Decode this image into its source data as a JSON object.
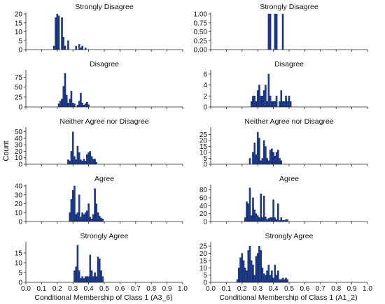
{
  "figure": {
    "ylabel": "Count",
    "bar_color": "#1f3d8f",
    "bar_edge": "#0d1f55",
    "x_ticks": [
      "0.0",
      "0.1",
      "0.2",
      "0.3",
      "0.4",
      "0.5",
      "0.6",
      "0.7",
      "0.8",
      "0.9",
      "1.0"
    ]
  },
  "chart_data": [
    {
      "type": "bar",
      "title": "Strongly Disagree",
      "xlabel": "",
      "ylabel": "",
      "xlim": [
        0,
        1
      ],
      "ylim": [
        0,
        20
      ],
      "y_ticks": [
        "0",
        "5",
        "10",
        "15",
        "20"
      ],
      "x": [
        0.18,
        0.19,
        0.2,
        0.21,
        0.23,
        0.24,
        0.25,
        0.27,
        0.32,
        0.34,
        0.35,
        0.36,
        0.38
      ],
      "values": [
        2,
        18,
        21,
        19,
        18,
        7,
        2,
        5,
        2,
        3,
        1,
        2,
        1
      ]
    },
    {
      "type": "bar",
      "title": "Strongly Disagree",
      "xlabel": "",
      "ylabel": "",
      "xlim": [
        0,
        1
      ],
      "ylim": [
        0,
        1.0
      ],
      "y_ticks": [
        "0.00",
        "0.25",
        "0.50",
        "0.75",
        "1.00"
      ],
      "x": [
        0.37,
        0.38,
        0.41,
        0.42,
        0.46
      ],
      "values": [
        1,
        1,
        1,
        1,
        1
      ]
    },
    {
      "type": "bar",
      "title": "Disagree",
      "xlabel": "",
      "ylabel": "",
      "xlim": [
        0,
        1
      ],
      "ylim": [
        0,
        90
      ],
      "y_ticks": [
        "0",
        "25",
        "50",
        "75"
      ],
      "x": [
        0.21,
        0.22,
        0.23,
        0.24,
        0.25,
        0.26,
        0.27,
        0.28,
        0.29,
        0.3,
        0.31,
        0.33,
        0.34,
        0.35,
        0.36,
        0.37,
        0.38,
        0.39,
        0.4
      ],
      "values": [
        8,
        15,
        20,
        52,
        85,
        30,
        10,
        20,
        40,
        10,
        8,
        5,
        15,
        35,
        10,
        5,
        8,
        12,
        6
      ]
    },
    {
      "type": "bar",
      "title": "Disagree",
      "xlabel": "",
      "ylabel": "",
      "xlim": [
        0,
        1
      ],
      "ylim": [
        0,
        6.5
      ],
      "y_ticks": [
        "0",
        "2",
        "4",
        "6"
      ],
      "x": [
        0.26,
        0.27,
        0.28,
        0.29,
        0.3,
        0.31,
        0.32,
        0.33,
        0.34,
        0.35,
        0.36,
        0.37,
        0.38,
        0.39,
        0.4,
        0.41,
        0.42,
        0.44,
        0.45,
        0.46,
        0.47,
        0.48,
        0.49,
        0.5,
        0.51
      ],
      "values": [
        1,
        2,
        2,
        1,
        3,
        4,
        2,
        2,
        3,
        4,
        1,
        6,
        2,
        1,
        1,
        1,
        2,
        1,
        3,
        1,
        1,
        2,
        1,
        2,
        1
      ]
    },
    {
      "type": "bar",
      "title": "Neither Agree nor Disagree",
      "xlabel": "",
      "ylabel": "Count",
      "xlim": [
        0,
        1
      ],
      "ylim": [
        0,
        55
      ],
      "y_ticks": [
        "0",
        "10",
        "20",
        "30",
        "40",
        "50"
      ],
      "x": [
        0.27,
        0.28,
        0.29,
        0.3,
        0.31,
        0.32,
        0.33,
        0.34,
        0.35,
        0.36,
        0.37,
        0.38,
        0.39,
        0.4,
        0.41,
        0.42,
        0.43,
        0.44,
        0.45
      ],
      "values": [
        7,
        5,
        20,
        50,
        12,
        7,
        28,
        18,
        7,
        5,
        8,
        5,
        15,
        18,
        20,
        12,
        8,
        8,
        3
      ]
    },
    {
      "type": "bar",
      "title": "Neither Agree nor Disagree",
      "xlabel": "",
      "ylabel": "",
      "xlim": [
        0,
        1
      ],
      "ylim": [
        0,
        30
      ],
      "y_ticks": [
        "0",
        "5",
        "10",
        "15",
        "20",
        "25"
      ],
      "x": [
        0.25,
        0.27,
        0.28,
        0.29,
        0.3,
        0.31,
        0.32,
        0.33,
        0.34,
        0.35,
        0.36,
        0.37,
        0.38,
        0.39,
        0.4,
        0.41,
        0.42,
        0.43,
        0.44,
        0.45
      ],
      "values": [
        5,
        10,
        18,
        8,
        27,
        22,
        3,
        5,
        20,
        15,
        5,
        3,
        12,
        13,
        10,
        7,
        10,
        12,
        5,
        3
      ]
    },
    {
      "type": "bar",
      "title": "Agree",
      "xlabel": "",
      "ylabel": "",
      "xlim": [
        0,
        1
      ],
      "ylim": [
        0,
        40
      ],
      "y_ticks": [
        "0",
        "10",
        "20",
        "30",
        "40"
      ],
      "x": [
        0.28,
        0.29,
        0.3,
        0.31,
        0.32,
        0.33,
        0.34,
        0.35,
        0.36,
        0.37,
        0.38,
        0.39,
        0.4,
        0.41,
        0.42,
        0.43,
        0.44,
        0.45,
        0.46,
        0.47,
        0.48,
        0.49
      ],
      "values": [
        10,
        25,
        35,
        40,
        8,
        10,
        30,
        5,
        10,
        8,
        10,
        12,
        20,
        5,
        3,
        8,
        37,
        20,
        10,
        6,
        4,
        3
      ]
    },
    {
      "type": "bar",
      "title": "Agree",
      "xlabel": "",
      "ylabel": "",
      "xlim": [
        0,
        1
      ],
      "ylim": [
        0,
        90
      ],
      "y_ticks": [
        "0",
        "20",
        "40",
        "60",
        "80"
      ],
      "x": [
        0.22,
        0.23,
        0.24,
        0.25,
        0.26,
        0.27,
        0.28,
        0.29,
        0.3,
        0.31,
        0.32,
        0.33,
        0.34,
        0.35,
        0.36,
        0.37,
        0.38,
        0.39,
        0.4,
        0.41,
        0.42,
        0.43,
        0.44,
        0.45,
        0.46,
        0.47,
        0.48,
        0.49
      ],
      "values": [
        10,
        50,
        45,
        85,
        15,
        60,
        30,
        20,
        15,
        10,
        70,
        10,
        65,
        12,
        5,
        8,
        10,
        10,
        55,
        10,
        5,
        45,
        3,
        10,
        3,
        3,
        5,
        5
      ]
    },
    {
      "type": "bar",
      "title": "Strongly Agree",
      "xlabel": "",
      "ylabel": "",
      "xlim": [
        0,
        1
      ],
      "ylim": [
        0,
        20
      ],
      "y_ticks": [
        "0",
        "5",
        "10",
        "15"
      ],
      "x": [
        0.31,
        0.32,
        0.33,
        0.34,
        0.35,
        0.36,
        0.37,
        0.38,
        0.39,
        0.4,
        0.41,
        0.42,
        0.43,
        0.44,
        0.45,
        0.46,
        0.47,
        0.48,
        0.49
      ],
      "values": [
        6,
        8,
        19,
        6,
        2,
        3,
        2,
        3,
        3,
        3,
        14,
        6,
        3,
        5,
        3,
        13,
        12,
        6,
        3
      ]
    },
    {
      "type": "bar",
      "title": "Strongly Agree",
      "xlabel": "",
      "ylabel": "",
      "xlim": [
        0,
        1
      ],
      "ylim": [
        0,
        27
      ],
      "y_ticks": [
        "0",
        "5",
        "10",
        "15",
        "20",
        "25"
      ],
      "x": [
        0.17,
        0.18,
        0.19,
        0.2,
        0.21,
        0.22,
        0.23,
        0.24,
        0.25,
        0.26,
        0.27,
        0.28,
        0.29,
        0.3,
        0.31,
        0.32,
        0.33,
        0.34,
        0.35,
        0.36,
        0.37,
        0.38,
        0.39,
        0.4,
        0.41,
        0.42,
        0.43,
        0.44,
        0.45,
        0.46,
        0.47,
        0.48,
        0.49
      ],
      "values": [
        2,
        10,
        17,
        20,
        15,
        10,
        8,
        22,
        25,
        15,
        12,
        5,
        18,
        20,
        25,
        22,
        10,
        6,
        5,
        8,
        12,
        5,
        8,
        3,
        12,
        5,
        8,
        2,
        2,
        3,
        2,
        3,
        2
      ]
    }
  ],
  "bottom_xlabels": [
    "Conditional Membership of Class 1 (A3_6)",
    "Conditional Membership of Class 1 (A1_2)"
  ]
}
